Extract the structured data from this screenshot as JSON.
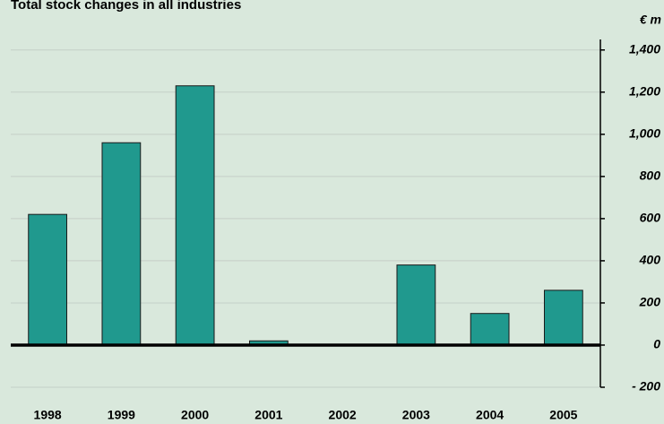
{
  "chart_data": {
    "type": "bar",
    "title": "Total stock changes in all industries",
    "y_unit": "€ m",
    "categories": [
      "1998",
      "1999",
      "2000",
      "2001",
      "2002",
      "2003",
      "2004",
      "2005"
    ],
    "values": [
      620,
      960,
      1230,
      20,
      0,
      380,
      150,
      260
    ],
    "color": "#20998e",
    "ylim": [
      -200,
      1450
    ],
    "yticks": [
      {
        "value": -200,
        "label": "- 200"
      },
      0,
      200,
      400,
      600,
      800,
      {
        "value": 1000,
        "label": "1,000"
      },
      {
        "value": 1200,
        "label": "1,200"
      },
      {
        "value": 1400,
        "label": "1,400"
      }
    ],
    "grid": true
  }
}
